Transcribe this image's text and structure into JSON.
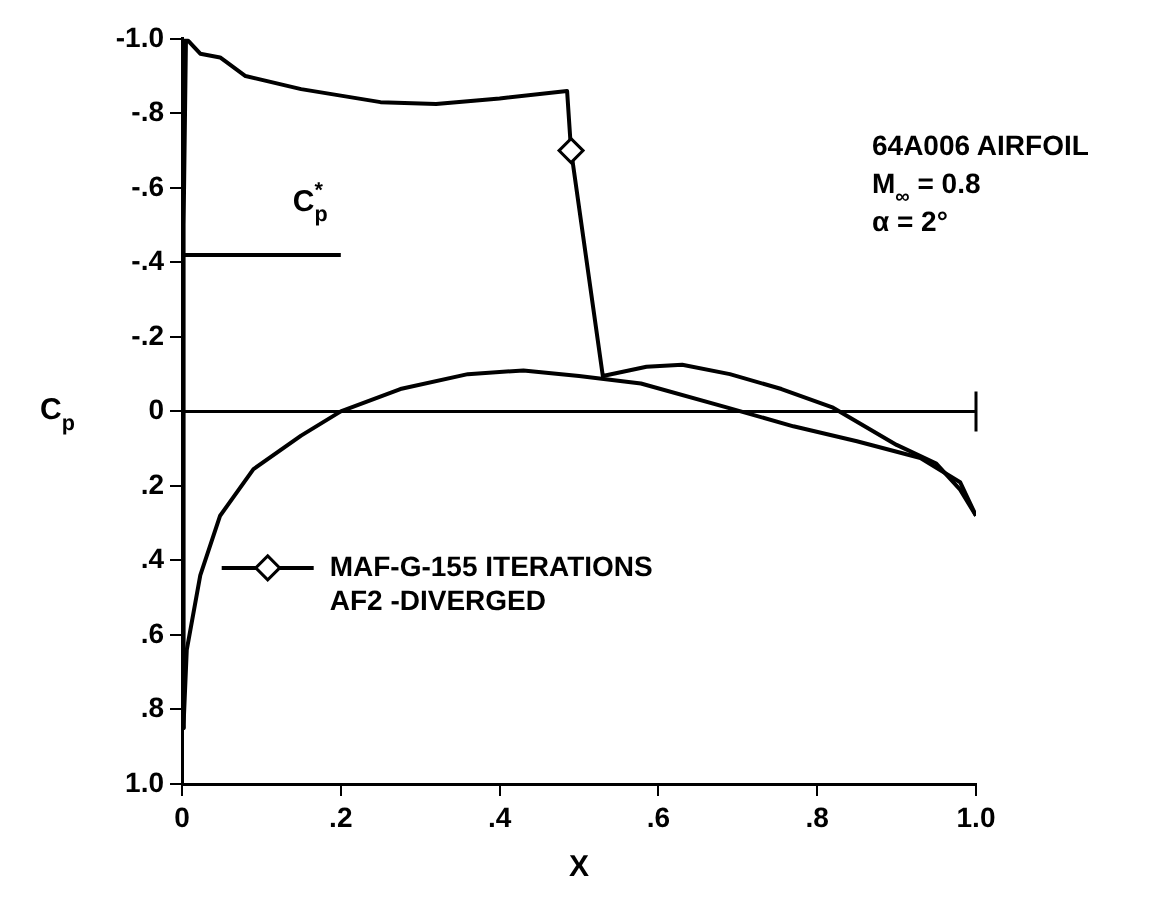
{
  "chart_data": {
    "type": "line",
    "xlabel": "X",
    "ylabel": "C$_{p}$",
    "xlim": [
      0,
      1.0
    ],
    "xticks": [
      0,
      {
        "value": 0.2,
        "label": ".2"
      },
      {
        "value": 0.4,
        "label": ".4"
      },
      {
        "value": 0.6,
        "label": ".6"
      },
      {
        "value": 0.8,
        "label": ".8"
      },
      {
        "value": 1.0,
        "label": "1.0"
      }
    ],
    "ylim": [
      1.0,
      -1.0
    ],
    "yticks": [
      {
        "value": -1.0,
        "label": "-1.0"
      },
      {
        "value": -0.8,
        "label": "-.8"
      },
      {
        "value": -0.6,
        "label": "-.6"
      },
      {
        "value": -0.4,
        "label": "-.4"
      },
      {
        "value": -0.2,
        "label": "-.2"
      },
      0,
      {
        "value": 0.2,
        "label": ".2"
      },
      {
        "value": 0.4,
        "label": ".4"
      },
      {
        "value": 0.6,
        "label": ".6"
      },
      {
        "value": 0.8,
        "label": ".8"
      },
      {
        "value": 1.0,
        "label": "1.0"
      }
    ],
    "grid": false,
    "legend": "left",
    "marker": "none",
    "line_style": "solid",
    "series": [
      {
        "name": "MAF-G-155 ITERATIONS\nAF2 -DIVERGED",
        "color": "#000000",
        "x": [
          0,
          0.002,
          0.005,
          0.01,
          0.023,
          0.048,
          0.08,
          0.15,
          0.25,
          0.32,
          0.4,
          0.485,
          0.49,
          0.53,
          0.585,
          0.63,
          0.69,
          0.755,
          0.82,
          0.9,
          0.95,
          0.98,
          1.0
        ],
        "values": [
          0.85,
          -0.5,
          -1.0,
          -0.99,
          -0.96,
          -0.95,
          -0.9,
          -0.865,
          -0.83,
          -0.825,
          -0.84,
          -0.86,
          -0.7,
          -0.095,
          -0.12,
          -0.125,
          -0.1,
          -0.06,
          -0.01,
          0.09,
          0.14,
          0.21,
          0.28
        ]
      },
      {
        "type": "scatter",
        "marker": "diamond",
        "color": "#000000",
        "x": [
          0.49
        ],
        "values": [
          -0.7
        ]
      },
      {
        "color": "#000000",
        "x": [
          0,
          0.002,
          0.006,
          0.023,
          0.048,
          0.09,
          0.15,
          0.2,
          0.275,
          0.36,
          0.43,
          0.5,
          0.578,
          0.687,
          0.77,
          0.85,
          0.93,
          0.98,
          1.0
        ],
        "values": [
          0.85,
          0.84,
          0.64,
          0.44,
          0.28,
          0.155,
          0.065,
          0.0,
          -0.06,
          -0.1,
          -0.11,
          -0.095,
          -0.075,
          -0.01,
          0.04,
          0.08,
          0.125,
          0.19,
          0.28
        ]
      },
      {
        "color": "#000000",
        "x": [
          0,
          0.2
        ],
        "values": [
          -0.42,
          -0.42
        ]
      }
    ],
    "ref_lines": [
      {
        "axis": "y",
        "value": 0,
        "color": "#000000"
      }
    ],
    "annotations": [
      "C$_{p}$$^{*}$",
      "64A006 AIRFOIL",
      "M$_{∞}$ = 0.8",
      "α = 2°"
    ]
  }
}
